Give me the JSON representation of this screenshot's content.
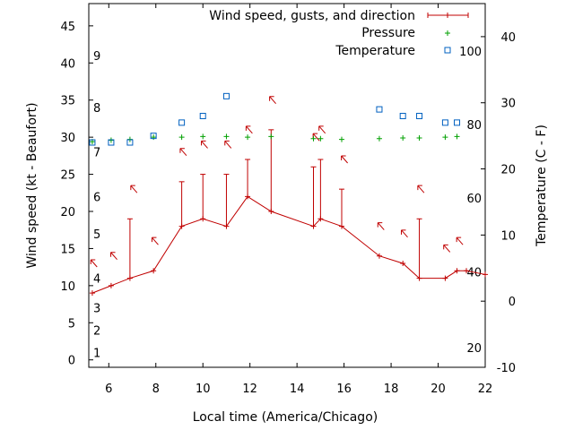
{
  "chart_data": {
    "type": "line",
    "xlabel": "Local time (America/Chicago)",
    "ylabel": "Wind speed (kt - Beaufort)",
    "y2label": "Temperature (C - F)",
    "xlim": [
      5.15,
      22
    ],
    "ylim": [
      -1,
      48
    ],
    "y2lim": [
      -10,
      45
    ],
    "xticks": [
      "6",
      "8",
      "10",
      "12",
      "14",
      "16",
      "18",
      "20",
      "22"
    ],
    "yticks": [
      "0",
      "5",
      "10",
      "15",
      "20",
      "25",
      "30",
      "35",
      "40",
      "45"
    ],
    "y2ticks": [
      "-10",
      "0",
      "10",
      "20",
      "30",
      "40"
    ],
    "beaufort_labels": [
      {
        "label": "1",
        "y": 1
      },
      {
        "label": "2",
        "y": 4
      },
      {
        "label": "3",
        "y": 7
      },
      {
        "label": "4",
        "y": 11
      },
      {
        "label": "5",
        "y": 17
      },
      {
        "label": "6",
        "y": 22
      },
      {
        "label": "7",
        "y": 28
      },
      {
        "label": "8",
        "y": 34
      },
      {
        "label": "9",
        "y": 41
      }
    ],
    "fahrenheit_labels": [
      {
        "label": "20",
        "y2": -7
      },
      {
        "label": "40",
        "y2": 4.4
      },
      {
        "label": "60",
        "y2": 15.6
      },
      {
        "label": "80",
        "y2": 26.7
      },
      {
        "label": "100",
        "y2": 37.8
      }
    ],
    "legend_position": "top-right",
    "series": [
      {
        "name": "Wind speed, gusts, and direction",
        "color": "#c00000",
        "x": [
          5.3,
          6.1,
          6.9,
          7.9,
          9.1,
          10.0,
          11.0,
          11.9,
          12.9,
          14.7,
          15.0,
          15.9,
          17.5,
          18.5,
          19.2,
          20.3,
          20.8,
          21.2,
          22.0
        ],
        "values": [
          9,
          10,
          11,
          12,
          18,
          19,
          18,
          22,
          20,
          18,
          19,
          18,
          14,
          13,
          11,
          11,
          12,
          12,
          11.5
        ],
        "gusts": [
          null,
          null,
          19,
          null,
          24,
          25,
          25,
          27,
          31,
          26,
          27,
          23,
          null,
          null,
          19,
          null,
          null,
          null,
          null
        ]
      },
      {
        "name": "Pressure",
        "color": "#00a000",
        "x": [
          5.3,
          6.1,
          6.9,
          7.9,
          9.1,
          10.0,
          11.0,
          11.9,
          12.9,
          14.7,
          15.0,
          15.9,
          17.5,
          18.5,
          19.2,
          20.3,
          20.8
        ],
        "values": [
          29.4,
          29.6,
          29.7,
          30.0,
          30.0,
          30.1,
          30.1,
          30.0,
          30.1,
          29.8,
          29.8,
          29.7,
          29.8,
          29.9,
          29.9,
          30.0,
          30.1
        ]
      },
      {
        "name": "Temperature",
        "color": "#0060c0",
        "x": [
          5.3,
          6.1,
          6.9,
          7.9,
          9.1,
          10.0,
          11.0,
          17.5,
          18.5,
          19.2,
          20.3,
          20.8
        ],
        "values": [
          24,
          24,
          24,
          25,
          27,
          28,
          31,
          29,
          28,
          28,
          27,
          27
        ]
      }
    ],
    "direction_arrows": [
      {
        "x": 5.35,
        "y": 13.0
      },
      {
        "x": 6.2,
        "y": 14.0
      },
      {
        "x": 7.05,
        "y": 23.0
      },
      {
        "x": 7.95,
        "y": 16.0
      },
      {
        "x": 9.15,
        "y": 28.0
      },
      {
        "x": 10.05,
        "y": 29.0
      },
      {
        "x": 11.05,
        "y": 29.0
      },
      {
        "x": 11.95,
        "y": 31.0
      },
      {
        "x": 12.95,
        "y": 35.0
      },
      {
        "x": 14.8,
        "y": 30.0
      },
      {
        "x": 15.05,
        "y": 31.0
      },
      {
        "x": 16.0,
        "y": 27.0
      },
      {
        "x": 17.55,
        "y": 18.0
      },
      {
        "x": 18.55,
        "y": 17.0
      },
      {
        "x": 19.25,
        "y": 23.0
      },
      {
        "x": 20.35,
        "y": 15.0
      },
      {
        "x": 20.9,
        "y": 16.0
      }
    ]
  }
}
